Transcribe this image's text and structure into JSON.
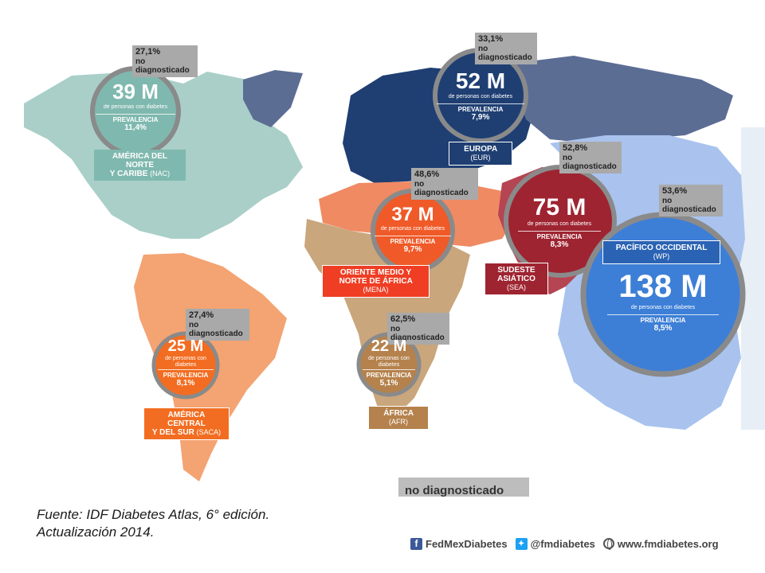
{
  "regions": {
    "nac": {
      "total": "39 M",
      "sub": "de personas con diabetes",
      "prev_label": "PREVALENCIA",
      "prev": "11,4%",
      "undiag_pct": "27,1%",
      "undiag_label": "no diagnosticado",
      "name_line1": "AMÉRICA DEL NORTE",
      "name_line2": "Y CARIBE",
      "code": "(NAC)",
      "color": "#7fb8ae"
    },
    "eur": {
      "total": "52 M",
      "sub": "de personas con diabetes",
      "prev_label": "PREVALENCIA",
      "prev": "7,9%",
      "undiag_pct": "33,1%",
      "undiag_label": "no diagnosticado",
      "name_line1": "EUROPA",
      "code": "(EUR)",
      "color": "#1f3f73"
    },
    "mena": {
      "total": "37 M",
      "sub": "de personas con diabetes",
      "prev_label": "PREVALENCIA",
      "prev": "9,7%",
      "undiag_pct": "48,6%",
      "undiag_label": "no diagnosticado",
      "name_line1": "ORIENTE MEDIO Y",
      "name_line2": "NORTE DE ÁFRICA",
      "code": "(MENA)",
      "color": "#ef5a28"
    },
    "sea": {
      "total": "75 M",
      "sub": "de personas con diabetes",
      "prev_label": "PREVALENCIA",
      "prev": "8,3%",
      "undiag_pct": "52,8%",
      "undiag_label": "no diagnosticado",
      "name_line1": "SUDESTE",
      "name_line2": "ASIÁTICO",
      "code": "(SEA)",
      "color": "#9e2431"
    },
    "wp": {
      "total": "138 M",
      "sub": "de personas con diabetes",
      "prev_label": "PREVALENCIA",
      "prev": "8,5%",
      "undiag_pct": "53,6%",
      "undiag_label": "no diagnosticado",
      "name_line1": "PACÍFICO OCCIDENTAL",
      "code": "(WP)",
      "color": "#3d7fd6"
    },
    "saca": {
      "total": "25 M",
      "sub": "de personas con diabetes",
      "prev_label": "PREVALENCIA",
      "prev": "8,1%",
      "undiag_pct": "27,4%",
      "undiag_label": "no diagnosticado",
      "name_line1": "AMÉRICA CENTRAL",
      "name_line2": "Y DEL SUR",
      "code": "(SACA)",
      "color": "#f26d21"
    },
    "afr": {
      "total": "22 M",
      "sub": "de personas con diabetes",
      "prev_label": "PREVALENCIA",
      "prev": "5,1%",
      "undiag_pct": "62,5%",
      "undiag_label": "no diagnosticado",
      "name_line1": "ÁFRICA",
      "code": "(AFR)",
      "color": "#b5824d"
    }
  },
  "cutoff_text": "no diagnosticado",
  "source_line1": "Fuente: IDF Diabetes Atlas, 6° edición.",
  "source_line2": "Actualización 2014.",
  "footer": {
    "facebook": "FedMexDiabetes",
    "twitter": "@fmdiabetes",
    "web": "www.fmdiabetes.org"
  }
}
